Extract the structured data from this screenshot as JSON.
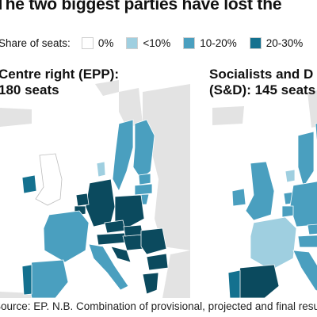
{
  "title": "The two biggest parties have lost the",
  "legend": {
    "label": "Share of seats:",
    "items": [
      {
        "label": "0%",
        "color": "#ffffff"
      },
      {
        "label": "<10%",
        "color": "#9fcfe0"
      },
      {
        "label": "10-20%",
        "color": "#4a9fbf"
      },
      {
        "label": "20-30%",
        "color": "#14718f"
      }
    ]
  },
  "maps": [
    {
      "party": "Centre right (EPP):",
      "seats": "180 seats"
    },
    {
      "party": "Socialists and D",
      "seats": "(S&D): 145 seats"
    }
  ],
  "source": "Source: EP. N.B. Combination of provisional, projected and final results",
  "colors": {
    "non_eu": "#e3e3e3",
    "sea": "#ffffff",
    "white": "#ffffff",
    "light": "#9fcfe0",
    "mid": "#4a9fbf",
    "dark": "#14718f",
    "darkest": "#0b4a5e"
  }
}
